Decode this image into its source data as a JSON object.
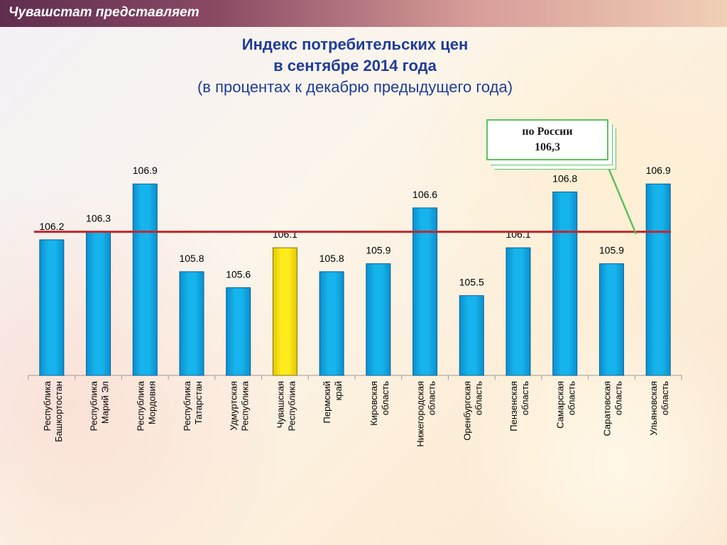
{
  "header": {
    "title": "Чувашстат представляет",
    "bar_colors": [
      "#5f2d4f",
      "#d79d98",
      "#f1cfb6"
    ]
  },
  "chart_data": {
    "type": "bar",
    "title_lines": [
      "Индекс потребительских цен",
      "в сентябре 2014 года",
      "(в процентах к декабрю предыдущего года)"
    ],
    "categories": [
      [
        "Республика",
        "Башкортостан"
      ],
      [
        "Республика",
        "Марий Эл"
      ],
      [
        "Республика",
        "Мордовия"
      ],
      [
        "Республика",
        "Татарстан"
      ],
      [
        "Удмуртская",
        "Республика"
      ],
      [
        "Чувашская",
        "Республика"
      ],
      [
        "Пермский",
        "край"
      ],
      [
        "Кировская",
        "область"
      ],
      [
        "Нижегородская",
        "область"
      ],
      [
        "Оренбургская",
        "область"
      ],
      [
        "Пензенская",
        "область"
      ],
      [
        "Самарская",
        "область"
      ],
      [
        "Саратовская",
        "область"
      ],
      [
        "Ульяновская",
        "область"
      ]
    ],
    "values": [
      106.2,
      106.3,
      106.9,
      105.8,
      105.6,
      106.1,
      105.8,
      105.9,
      106.6,
      105.5,
      106.1,
      106.8,
      105.9,
      106.9
    ],
    "value_labels": [
      "106.2",
      "106.3",
      "106.9",
      "105.8",
      "105.6",
      "106.1",
      "105.8",
      "105.9",
      "106.6",
      "105.5",
      "106.1",
      "106.8",
      "105.9",
      "106.9"
    ],
    "highlight_index": 5,
    "reference_line": {
      "value": 106.3,
      "label_lines": [
        "по России",
        "106,3"
      ],
      "color": "#c0272d"
    },
    "ylim": [
      104.5,
      107.0
    ],
    "grid": false,
    "colors": {
      "bar": "#16b4ec",
      "bar_edge": "#0a5f95",
      "highlight": "#ffec1f",
      "highlight_edge": "#8a7400",
      "callout": "#5cc25f",
      "title": "#1f3c99"
    }
  }
}
